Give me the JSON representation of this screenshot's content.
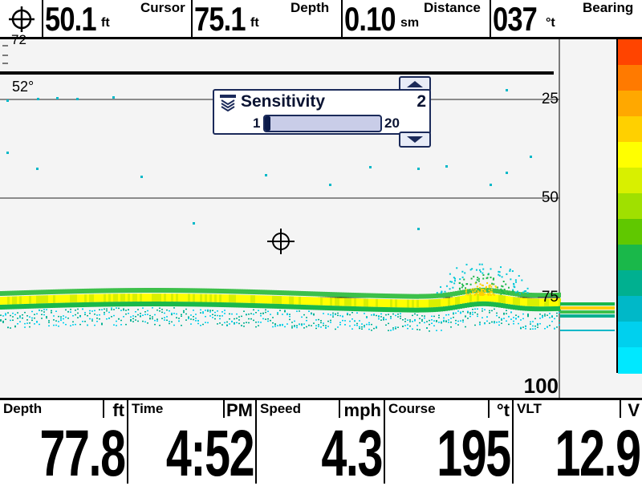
{
  "top_bar": {
    "cursor_depth": {
      "value": "50.1",
      "unit": "ft",
      "label": "Cursor"
    },
    "depth": {
      "value": "75.1",
      "unit": "ft",
      "label": "Depth"
    },
    "distance": {
      "value": "0.10",
      "unit": "sm",
      "label": "Distance"
    },
    "bearing": {
      "value": "037",
      "unit": "°t",
      "label": "Bearing"
    },
    "icon": "crosshair-icon"
  },
  "sonar": {
    "temp_top": "72",
    "temp": "52°",
    "depth_scale": [
      "25",
      "50",
      "75",
      "100"
    ],
    "cursor_icon": "crosshair-icon"
  },
  "sensitivity": {
    "title": "Sensitivity",
    "value": "2",
    "min": "1",
    "max": "20",
    "level": 2,
    "range_max": 20,
    "icon": "sensitivity-icon"
  },
  "bottom_bar": [
    {
      "label": "Depth",
      "unit": "ft",
      "value": "77.8"
    },
    {
      "label": "Time",
      "unit": "PM",
      "value": "4:52"
    },
    {
      "label": "Speed",
      "unit": "mph",
      "value": "4.3"
    },
    {
      "label": "Course",
      "unit": "°t",
      "value": "195"
    },
    {
      "label": "VLT",
      "unit": "V",
      "value": "12.9"
    }
  ],
  "colors": {
    "palette": [
      "#ff4400",
      "#ff7a00",
      "#ffa800",
      "#ffd000",
      "#ffff00",
      "#d8f000",
      "#a0e000",
      "#60c800",
      "#1ab84a",
      "#00b090",
      "#00b8c8",
      "#00d0ee",
      "#00e8ff"
    ],
    "popup_border": "#1b2a5a",
    "popup_fill": "#0b1a4a"
  }
}
